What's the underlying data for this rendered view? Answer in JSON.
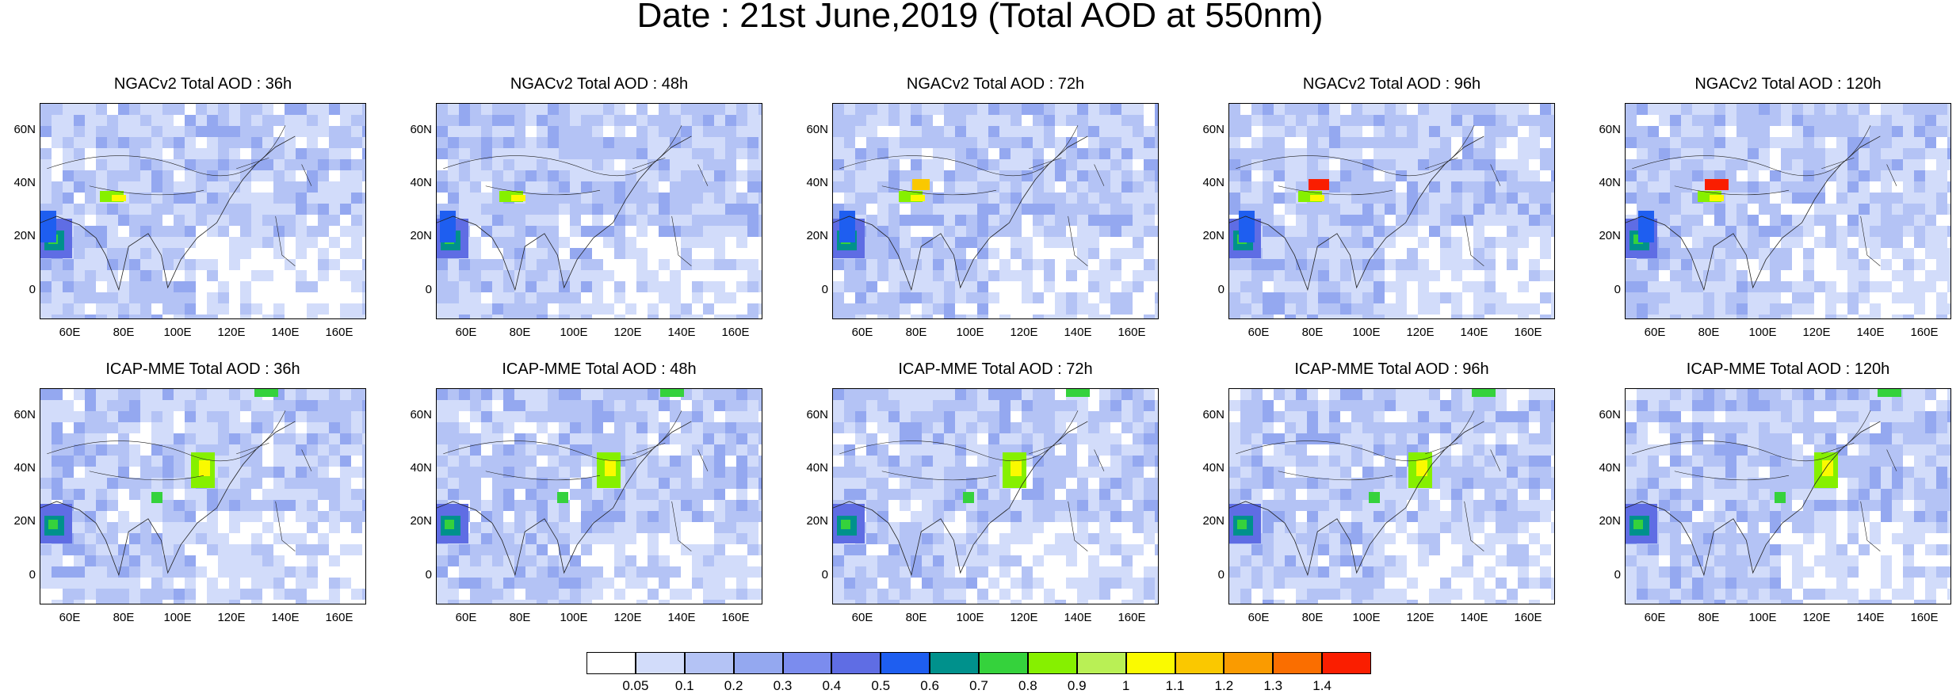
{
  "title": "Date : 21st June,2019 (Total AOD at 550nm)",
  "rows": [
    {
      "model": "NGACv2",
      "panels": [
        {
          "title": "NGACv2 Total AOD : 36h"
        },
        {
          "title": "NGACv2 Total AOD : 48h"
        },
        {
          "title": "NGACv2 Total AOD : 72h"
        },
        {
          "title": "NGACv2 Total AOD : 96h"
        },
        {
          "title": "NGACv2 Total AOD : 120h"
        }
      ]
    },
    {
      "model": "ICAP-MME",
      "panels": [
        {
          "title": "ICAP-MME Total AOD : 36h"
        },
        {
          "title": "ICAP-MME Total AOD : 48h"
        },
        {
          "title": "ICAP-MME Total AOD : 72h"
        },
        {
          "title": "ICAP-MME Total AOD : 96h"
        },
        {
          "title": "ICAP-MME Total AOD : 120h"
        }
      ]
    }
  ],
  "lat_ticks": [
    "60N",
    "40N",
    "20N",
    "0"
  ],
  "lon_ticks": [
    "60E",
    "80E",
    "100E",
    "120E",
    "140E",
    "160E"
  ],
  "colorbar": {
    "colors": [
      "#ffffff",
      "#d2dcfa",
      "#b4c3f5",
      "#94a8f0",
      "#7b8cee",
      "#5f6de4",
      "#1e5ef0",
      "#00918c",
      "#35d23c",
      "#86f000",
      "#b9f055",
      "#fafa00",
      "#fac800",
      "#fa9b00",
      "#fa6e00",
      "#fa1e00"
    ],
    "labels": [
      "0.05",
      "0.1",
      "0.2",
      "0.3",
      "0.4",
      "0.5",
      "0.6",
      "0.7",
      "0.8",
      "0.9",
      "1",
      "1.1",
      "1.2",
      "1.3",
      "1.4"
    ]
  }
}
